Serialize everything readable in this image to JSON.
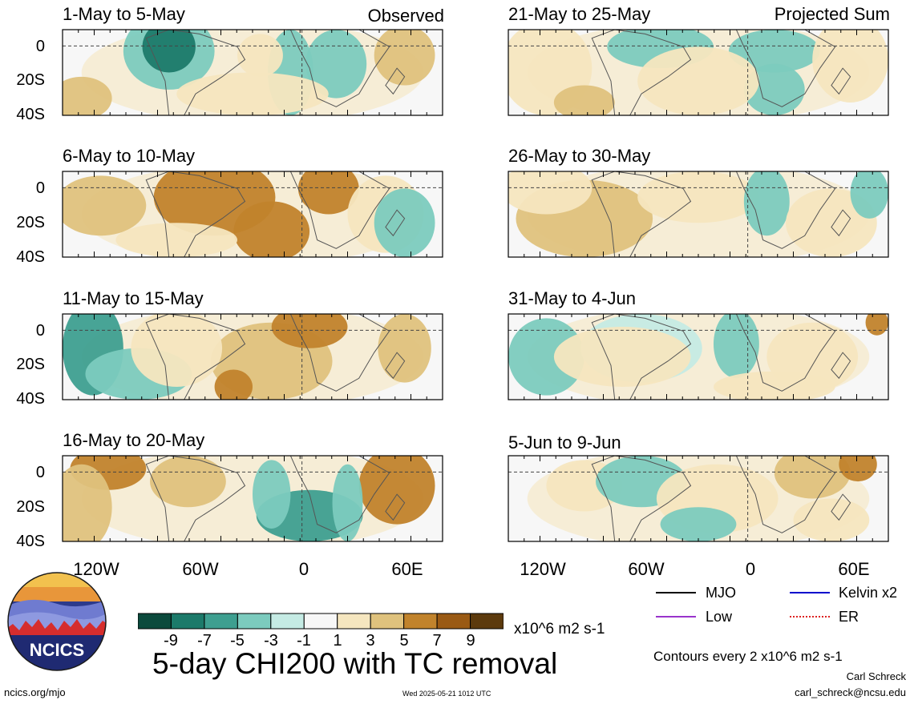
{
  "chart_data": {
    "type": "heatmap",
    "title": "5-day CHI200 with TC removal",
    "units": "x10^6 m2 s-1",
    "contour_note": "Contours every 2 x10^6 m2 s-1",
    "left_column_tag": "Observed",
    "right_column_tag": "Projected Sum",
    "y_ticks": [
      "0",
      "20S",
      "40S"
    ],
    "x_ticks": [
      "120W",
      "60W",
      "0",
      "60E"
    ],
    "colorbar_ticks": [
      "-9",
      "-7",
      "-5",
      "-3",
      "-1",
      "1",
      "3",
      "5",
      "7",
      "9"
    ],
    "colorbar_colors": [
      "#0b4a3c",
      "#1c7a6a",
      "#3e9f90",
      "#7ccbbe",
      "#c5ebe4",
      "#f7f7f7",
      "#f5e6bf",
      "#dfc27d",
      "#c1832c",
      "#9a5a14",
      "#5c3a0d"
    ],
    "panels": [
      {
        "period": "1-May to 5-May",
        "group": "Observed"
      },
      {
        "period": "6-May to 10-May",
        "group": "Observed"
      },
      {
        "period": "11-May to 15-May",
        "group": "Observed"
      },
      {
        "period": "16-May to 20-May",
        "group": "Observed"
      },
      {
        "period": "21-May to 25-May",
        "group": "Projected Sum"
      },
      {
        "period": "26-May to 30-May",
        "group": "Projected Sum"
      },
      {
        "period": "31-May to 4-Jun",
        "group": "Projected Sum"
      },
      {
        "period": "5-Jun to 9-Jun",
        "group": "Projected Sum"
      }
    ],
    "legend": [
      {
        "name": "MJO",
        "color": "#000000"
      },
      {
        "name": "Kelvin x2",
        "color": "#0000cc"
      },
      {
        "name": "Low",
        "color": "#9933cc"
      },
      {
        "name": "ER",
        "color": "#dd2222"
      }
    ]
  },
  "footer": {
    "logo_text": "NCICS",
    "site": "ncics.org/mjo",
    "timestamp": "Wed 2025-05-21 1012 UTC",
    "author": "Carl Schreck",
    "email": "carl_schreck@ncsu.edu"
  }
}
